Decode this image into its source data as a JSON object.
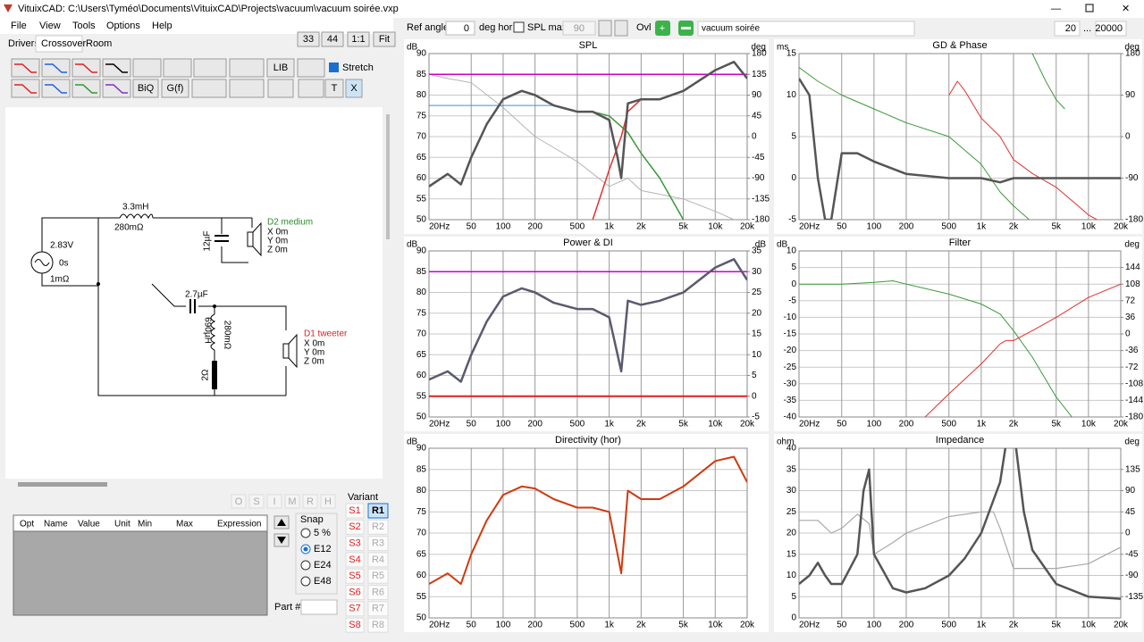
{
  "window": {
    "title": "VituixCAD: C:\\Users\\Tyméo\\Documents\\VituixCAD\\Projects\\vacuum\\vacuum soirée.vxp"
  },
  "menu": [
    "File",
    "View",
    "Tools",
    "Options",
    "Help"
  ],
  "tabs": [
    "Drivers",
    "Crossover",
    "Room"
  ],
  "zoom_buttons": [
    "33",
    "44",
    "1:1",
    "Fit"
  ],
  "toolbar": {
    "lib": "LIB",
    "biq": "BiQ",
    "gf": "G(f)",
    "t": "T",
    "x": "X",
    "stretch": "Stretch"
  },
  "schematic": {
    "l1": "3.3mH",
    "l1_r": "280mΩ",
    "source_v": "2.83V",
    "source_delay": "0s",
    "source_r": "1mΩ",
    "c1": "12µF",
    "d2_name": "D2 medium",
    "d2_x": "X 0m",
    "d2_y": "Y 0m",
    "d2_z": "Z 0m",
    "c2": "2.7µF",
    "l2": "690µH",
    "l2_r": "280mΩ",
    "r1": "2Ω",
    "d1_name": "D1 tweeter",
    "d1_x": "X 0m",
    "d1_y": "Y 0m",
    "d1_z": "Z 0m"
  },
  "param_buttons": [
    "O",
    "S",
    "I",
    "M",
    "R",
    "H"
  ],
  "param_table": {
    "headers": [
      "Opt",
      "Name",
      "Value",
      "Unit",
      "Min",
      "Max",
      "Expression"
    ]
  },
  "snap": {
    "label": "Snap",
    "options": [
      "5 %",
      "E12",
      "E24",
      "E48"
    ]
  },
  "variant": {
    "label": "Variant",
    "s": [
      "S1",
      "S2",
      "S3",
      "S4",
      "S5",
      "S6",
      "S7",
      "S8"
    ],
    "r": [
      "R1",
      "R2",
      "R3",
      "R4",
      "R5",
      "R6",
      "R7",
      "R8"
    ]
  },
  "part_label": "Part #",
  "top_bar": {
    "ref_angle_label": "Ref angle",
    "ref_angle": "0",
    "deg_hor": "deg hor",
    "spl_max_label": "SPL max",
    "spl_max": "90",
    "ovl": "Ovl",
    "name": "vacuum soirée",
    "f_min": "20",
    "dots": "...",
    "f_max": "20000"
  },
  "chart_data": [
    {
      "type": "line",
      "title": "SPL",
      "ylabel": "dB",
      "y2label": "deg",
      "log_x": true,
      "xlim": [
        20,
        20000
      ],
      "ylim": [
        50,
        90
      ],
      "y2lim": [
        -180,
        180
      ],
      "xticks": [
        {
          "value": 20,
          "label": "20Hz"
        },
        50,
        100,
        200,
        500,
        {
          "value": 1000,
          "label": "1k"
        },
        {
          "value": 2000,
          "label": "2k"
        },
        {
          "value": 5000,
          "label": "5k"
        },
        {
          "value": 10000,
          "label": "10k"
        },
        {
          "value": 20000,
          "label": "20k"
        }
      ],
      "yticks": [
        50,
        55,
        60,
        65,
        70,
        75,
        80,
        85,
        90
      ],
      "y2ticks": [
        -180,
        -135,
        -90,
        -45,
        0,
        45,
        90,
        135,
        180
      ],
      "series": [
        {
          "color": "#b4b4b4",
          "width": 1,
          "x": [
            20,
            30,
            50,
            100,
            200,
            500,
            1000,
            1500,
            2000,
            5000,
            10000,
            15000
          ],
          "values": [
            85,
            84,
            83,
            77,
            70,
            64,
            58,
            60,
            57,
            55,
            52,
            50
          ]
        },
        {
          "color": "#cc00cc",
          "width": 1.5,
          "x": [
            20,
            20000
          ],
          "values": [
            85,
            85
          ]
        },
        {
          "color": "#3a8ee6",
          "width": 1,
          "x": [
            20,
            300
          ],
          "values": [
            77.5,
            77.5
          ]
        },
        {
          "color": "#3a9a3a",
          "width": 1.5,
          "x": [
            20,
            30,
            40,
            50,
            70,
            100,
            150,
            200,
            300,
            500,
            700,
            1000,
            1500,
            2000,
            3000,
            5000
          ],
          "values": [
            58,
            61,
            58.5,
            65,
            73,
            79,
            81,
            80,
            77.5,
            76,
            76,
            75,
            71,
            66,
            60,
            50
          ]
        },
        {
          "color": "#e03030",
          "width": 1.5,
          "x": [
            700,
            1000,
            1300,
            1500,
            2000,
            3000,
            5000,
            10000,
            15000,
            20000
          ],
          "values": [
            50,
            62,
            70,
            76,
            79,
            79,
            81,
            86,
            88,
            84
          ]
        },
        {
          "color": "#555555",
          "width": 2.5,
          "x": [
            20,
            30,
            40,
            50,
            70,
            100,
            150,
            200,
            300,
            500,
            700,
            1000,
            1200,
            1300,
            1500,
            2000,
            3000,
            5000,
            10000,
            15000,
            20000
          ],
          "values": [
            58,
            61,
            58.5,
            65,
            73,
            79,
            81,
            80,
            77.5,
            76,
            76,
            74,
            65,
            60,
            78,
            79,
            79,
            81,
            86,
            88,
            84
          ]
        }
      ]
    },
    {
      "type": "line",
      "title": "GD & Phase",
      "ylabel": "ms",
      "y2label": "deg",
      "log_x": true,
      "xlim": [
        20,
        20000
      ],
      "ylim": [
        -5,
        15
      ],
      "y2lim": [
        -180,
        180
      ],
      "xticks": [
        {
          "value": 20,
          "label": "20Hz"
        },
        50,
        100,
        200,
        500,
        {
          "value": 1000,
          "label": "1k"
        },
        {
          "value": 2000,
          "label": "2k"
        },
        {
          "value": 5000,
          "label": "5k"
        },
        {
          "value": 10000,
          "label": "10k"
        },
        {
          "value": 20000,
          "label": "20k"
        }
      ],
      "yticks": [
        -5,
        0,
        5,
        10,
        15
      ],
      "y2ticks": [
        -180,
        -90,
        0,
        90,
        180
      ],
      "series": [
        {
          "color": "#3a9a3a",
          "width": 1,
          "axis": "y2",
          "x": [
            20,
            30,
            50,
            100,
            200,
            500,
            1000,
            1500,
            2000,
            2800,
            2900,
            3000,
            4000,
            5000,
            6000
          ],
          "values": [
            150,
            120,
            90,
            60,
            30,
            0,
            -60,
            -120,
            -150,
            -180,
            null,
            180,
            120,
            80,
            60
          ]
        },
        {
          "color": "#e03030",
          "width": 1,
          "axis": "y2",
          "x": [
            500,
            600,
            700,
            1000,
            1500,
            2000,
            3000,
            5000,
            8000,
            10000,
            12000
          ],
          "values": [
            90,
            120,
            100,
            40,
            0,
            -50,
            -80,
            -110,
            -150,
            -170,
            -180
          ]
        },
        {
          "color": "#555555",
          "width": 2.5,
          "x": [
            20,
            25,
            30,
            35,
            40,
            50,
            70,
            100,
            200,
            500,
            1000,
            1500,
            2000,
            3000,
            5000,
            10000,
            20000
          ],
          "values": [
            12,
            10,
            0,
            -5,
            -5,
            3,
            3,
            2,
            0.5,
            0,
            0,
            -0.5,
            0,
            0,
            0,
            0,
            0
          ]
        }
      ]
    },
    {
      "type": "line",
      "title": "Power & DI",
      "ylabel": "dB",
      "y2label": "dB",
      "log_x": true,
      "xlim": [
        20,
        20000
      ],
      "ylim": [
        50,
        90
      ],
      "y2lim": [
        -5,
        35
      ],
      "xticks": [
        {
          "value": 20,
          "label": "20Hz"
        },
        50,
        100,
        200,
        500,
        {
          "value": 1000,
          "label": "1k"
        },
        {
          "value": 2000,
          "label": "2k"
        },
        {
          "value": 5000,
          "label": "5k"
        },
        {
          "value": 10000,
          "label": "10k"
        },
        {
          "value": 20000,
          "label": "20k"
        }
      ],
      "yticks": [
        50,
        55,
        60,
        65,
        70,
        75,
        80,
        85,
        90
      ],
      "y2ticks": [
        -5,
        0,
        5,
        10,
        15,
        20,
        25,
        30,
        35
      ],
      "series": [
        {
          "color": "#cc00cc",
          "width": 1.5,
          "x": [
            20,
            20000
          ],
          "values": [
            85,
            85
          ]
        },
        {
          "color": "#e02020",
          "width": 2,
          "axis": "y2",
          "x": [
            20,
            20000
          ],
          "values": [
            0,
            0
          ]
        },
        {
          "color": "#5a5a70",
          "width": 2.5,
          "x": [
            20,
            30,
            40,
            50,
            70,
            100,
            150,
            200,
            300,
            500,
            700,
            1000,
            1200,
            1300,
            1500,
            2000,
            3000,
            5000,
            10000,
            15000,
            20000
          ],
          "values": [
            59,
            61,
            58.5,
            65,
            73,
            79,
            81,
            80,
            77.5,
            76,
            76,
            74,
            65,
            61,
            78,
            77,
            78,
            80,
            86,
            88,
            83
          ]
        }
      ]
    },
    {
      "type": "line",
      "title": "Filter",
      "ylabel": "dB",
      "y2label": "deg",
      "log_x": true,
      "xlim": [
        20,
        20000
      ],
      "ylim": [
        -40,
        10
      ],
      "y2lim": [
        -180,
        180
      ],
      "xticks": [
        {
          "value": 20,
          "label": "20Hz"
        },
        50,
        100,
        200,
        500,
        {
          "value": 1000,
          "label": "1k"
        },
        {
          "value": 2000,
          "label": "2k"
        },
        {
          "value": 5000,
          "label": "5k"
        },
        {
          "value": 10000,
          "label": "10k"
        },
        {
          "value": 20000,
          "label": "20k"
        }
      ],
      "yticks": [
        -40,
        -35,
        -30,
        -25,
        -20,
        -15,
        -10,
        -5,
        0,
        5,
        10
      ],
      "y2ticks": [
        -180,
        -144,
        -108,
        -72,
        -36,
        0,
        36,
        72,
        108,
        144
      ],
      "series": [
        {
          "color": "#3a9a3a",
          "width": 1,
          "x": [
            20,
            50,
            100,
            150,
            200,
            500,
            1000,
            1500,
            2000,
            3000,
            5000,
            7000
          ],
          "values": [
            0,
            0,
            0.5,
            1,
            0,
            -3,
            -6,
            -9,
            -14,
            -22,
            -34,
            -40
          ]
        },
        {
          "color": "#e03030",
          "width": 1,
          "x": [
            300,
            500,
            1000,
            1500,
            1700,
            2000,
            3000,
            5000,
            10000,
            20000
          ],
          "values": [
            -40,
            -33,
            -24,
            -18,
            -17,
            -17,
            -14,
            -10,
            -4,
            0
          ]
        }
      ]
    },
    {
      "type": "line",
      "title": "Directivity (hor)",
      "ylabel": "dB",
      "log_x": true,
      "xlim": [
        20,
        20000
      ],
      "ylim": [
        50,
        90
      ],
      "xticks": [
        {
          "value": 20,
          "label": "20Hz"
        },
        50,
        100,
        200,
        500,
        {
          "value": 1000,
          "label": "1k"
        },
        {
          "value": 2000,
          "label": "2k"
        },
        {
          "value": 5000,
          "label": "5k"
        },
        {
          "value": 10000,
          "label": "10k"
        },
        {
          "value": 20000,
          "label": "20k"
        }
      ],
      "yticks": [
        50,
        55,
        60,
        65,
        70,
        75,
        80,
        85,
        90
      ],
      "series": [
        {
          "color": "#d03a10",
          "width": 2,
          "x": [
            20,
            30,
            40,
            50,
            70,
            100,
            150,
            200,
            300,
            500,
            700,
            1000,
            1200,
            1300,
            1500,
            2000,
            3000,
            5000,
            10000,
            15000,
            20000
          ],
          "values": [
            58,
            60.5,
            58,
            65,
            73,
            79,
            81,
            80.5,
            78,
            76,
            76,
            75,
            65,
            60.5,
            80,
            78,
            78,
            81,
            87,
            88,
            82
          ]
        }
      ]
    },
    {
      "type": "line",
      "title": "Impedance",
      "ylabel": "ohm",
      "y2label": "deg",
      "log_x": true,
      "xlim": [
        20,
        20000
      ],
      "ylim": [
        0,
        40
      ],
      "y2lim": [
        -180,
        180
      ],
      "xticks": [
        {
          "value": 20,
          "label": "20Hz"
        },
        50,
        100,
        200,
        500,
        {
          "value": 1000,
          "label": "1k"
        },
        {
          "value": 2000,
          "label": "2k"
        },
        {
          "value": 5000,
          "label": "5k"
        },
        {
          "value": 10000,
          "label": "10k"
        },
        {
          "value": 20000,
          "label": "20k"
        }
      ],
      "yticks": [
        0,
        5,
        10,
        15,
        20,
        25,
        30,
        35,
        40
      ],
      "y2ticks": [
        -135,
        -90,
        -45,
        0,
        45,
        90,
        135
      ],
      "series": [
        {
          "color": "#a8a8a8",
          "width": 1.2,
          "axis": "y2",
          "x": [
            20,
            30,
            40,
            50,
            70,
            90,
            100,
            150,
            200,
            500,
            1000,
            1300,
            1500,
            2000,
            5000,
            10000,
            20000
          ],
          "values": [
            27,
            27,
            0,
            10,
            40,
            20,
            -45,
            -20,
            0,
            35,
            45,
            45,
            10,
            -75,
            -75,
            -65,
            -30
          ]
        },
        {
          "color": "#555555",
          "width": 2.5,
          "x": [
            20,
            25,
            30,
            35,
            40,
            50,
            70,
            80,
            90,
            100,
            150,
            200,
            300,
            500,
            700,
            1000,
            1500,
            1800,
            2000,
            2500,
            3000,
            5000,
            10000,
            20000
          ],
          "values": [
            8,
            10,
            13,
            10,
            8,
            8,
            15,
            30,
            35,
            15,
            7,
            6,
            7,
            10,
            14,
            20,
            32,
            45,
            45,
            25,
            16,
            8,
            5,
            4.5
          ]
        }
      ]
    }
  ]
}
